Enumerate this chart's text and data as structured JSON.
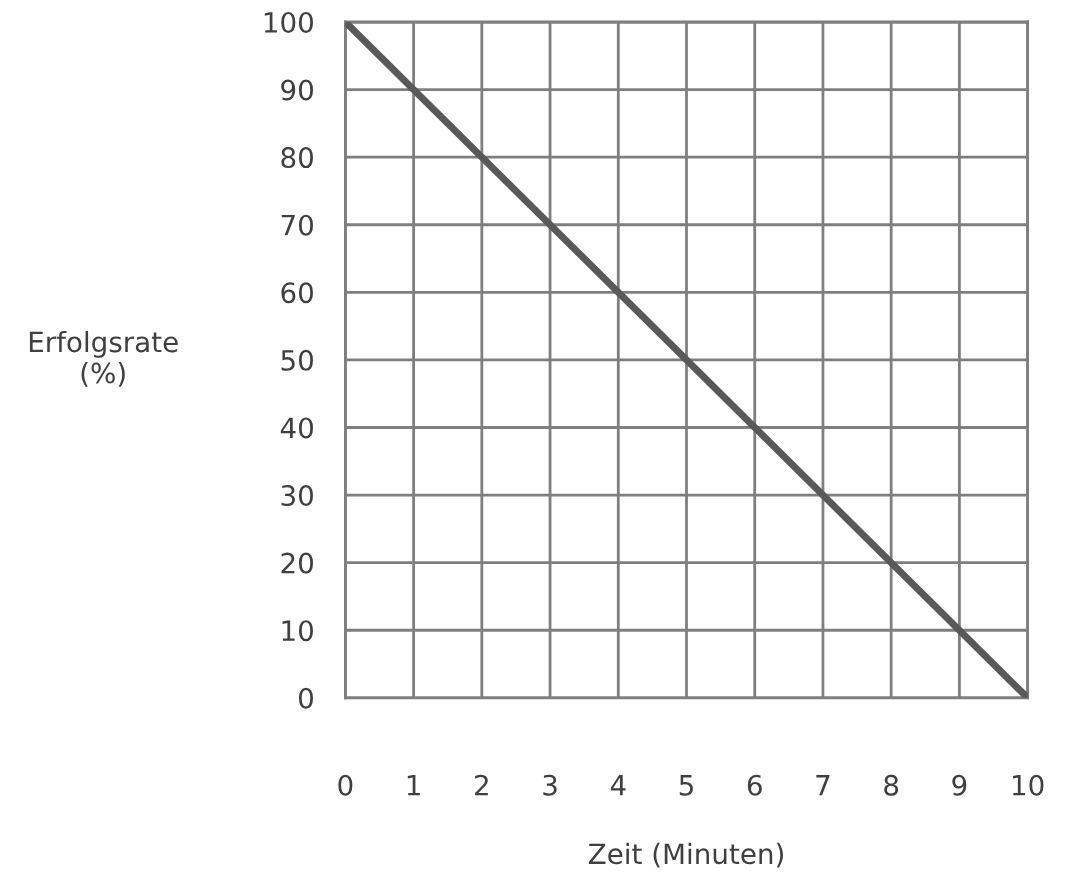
{
  "chart_data": {
    "type": "line",
    "xlabel": "Zeit (Minuten)",
    "ylabel": "Erfolgsrate\n(%)",
    "x": [
      0,
      10
    ],
    "series": [
      {
        "color": "#595959",
        "values": [
          100,
          0
        ]
      }
    ],
    "xlim": [
      0,
      10
    ],
    "ylim": [
      0,
      100
    ],
    "xticks": [
      0,
      1,
      2,
      3,
      4,
      5,
      6,
      7,
      8,
      9,
      10
    ],
    "yticks": [
      0,
      10,
      20,
      30,
      40,
      50,
      60,
      70,
      80,
      90,
      100
    ],
    "grid": true,
    "legend": false,
    "marker": "none",
    "line_style": "solid"
  }
}
